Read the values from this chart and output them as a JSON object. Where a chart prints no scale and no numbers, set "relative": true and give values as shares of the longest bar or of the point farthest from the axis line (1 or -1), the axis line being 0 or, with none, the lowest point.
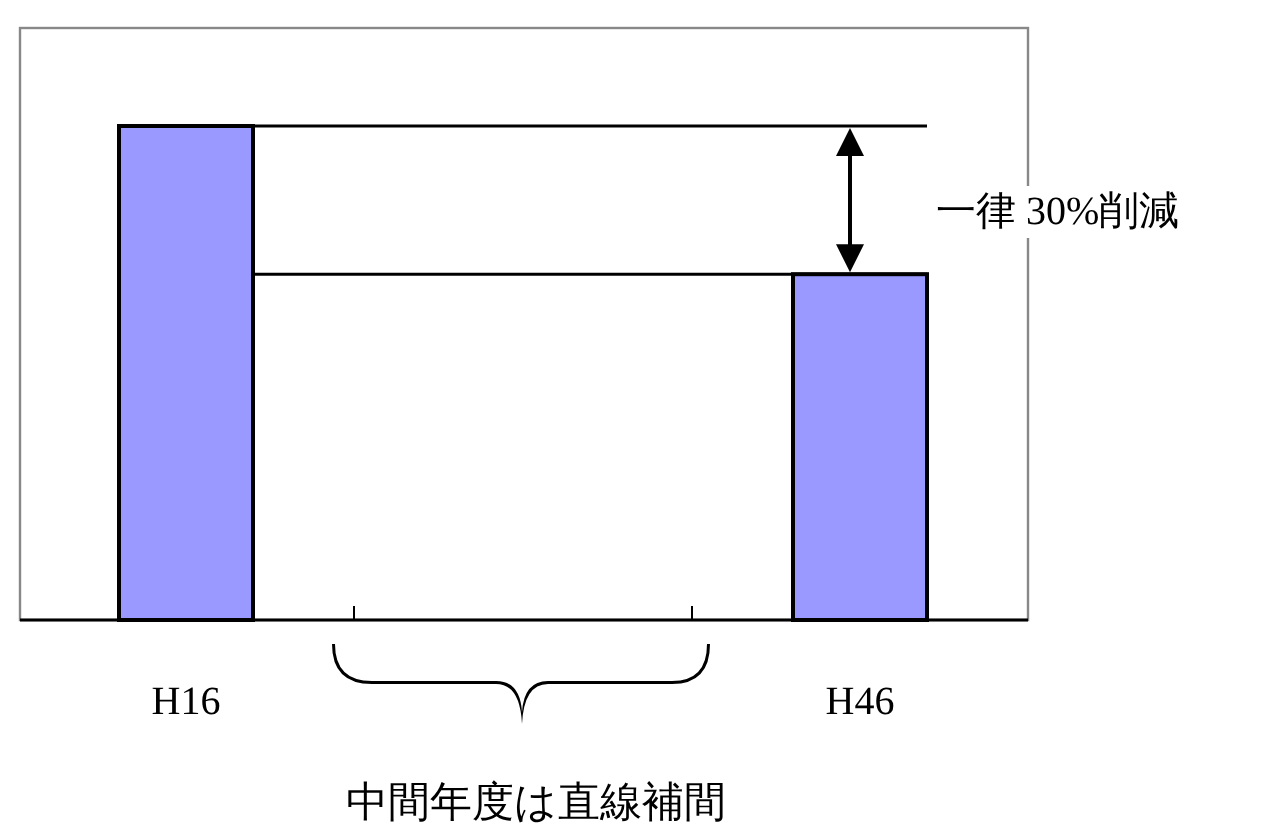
{
  "chart_data": {
    "type": "bar",
    "relative": true,
    "categories": [
      "H16",
      "H46"
    ],
    "values": [
      1,
      0.7
    ],
    "color": "#9999ff",
    "ref_lines": [
      {
        "axis": "y",
        "value": 1,
        "color": "#000000"
      },
      {
        "axis": "y",
        "value": 0.7,
        "color": "#000000"
      }
    ],
    "annotations": [
      "一律 30%削減",
      "中間年度は直線補間"
    ],
    "data_labels": false
  }
}
